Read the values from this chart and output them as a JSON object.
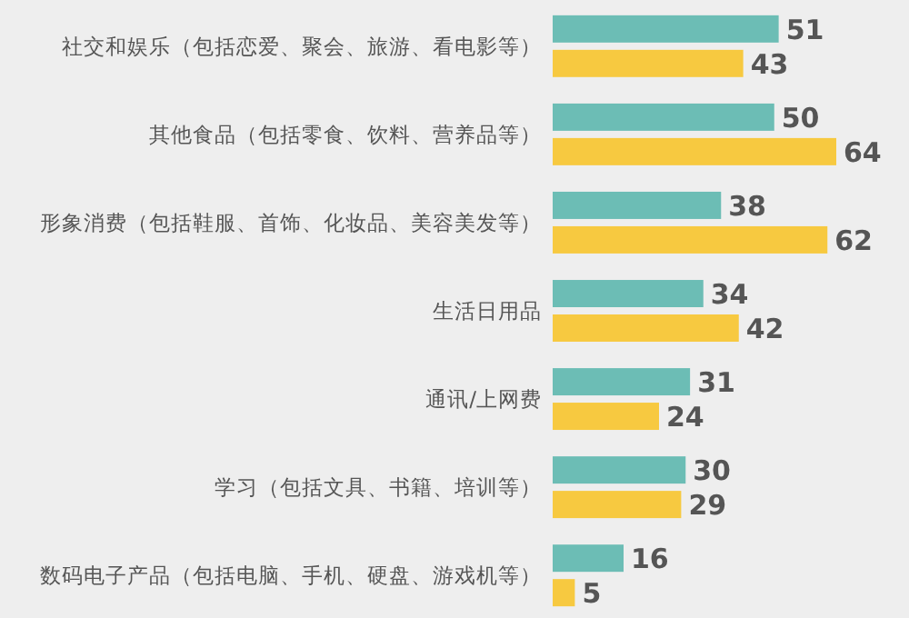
{
  "chart_data": {
    "type": "bar",
    "orientation": "horizontal",
    "data_labels": true,
    "categories": [
      "社交和娱乐（包括恋爱、聚会、旅游、看电影等）",
      "其他食品（包括零食、饮料、营养品等）",
      "形象消费（包括鞋服、首饰、化妆品、美容美发等）",
      "生活日用品",
      "通讯/上网费",
      "学习（包括文具、书籍、培训等）",
      "数码电子产品（包括电脑、手机、硬盘、游戏机等）"
    ],
    "series": [
      {
        "color": "#6cbdb5",
        "values": [
          51,
          50,
          38,
          34,
          31,
          30,
          16
        ]
      },
      {
        "color": "#f7c940",
        "values": [
          43,
          64,
          62,
          42,
          24,
          29,
          5
        ]
      }
    ]
  }
}
